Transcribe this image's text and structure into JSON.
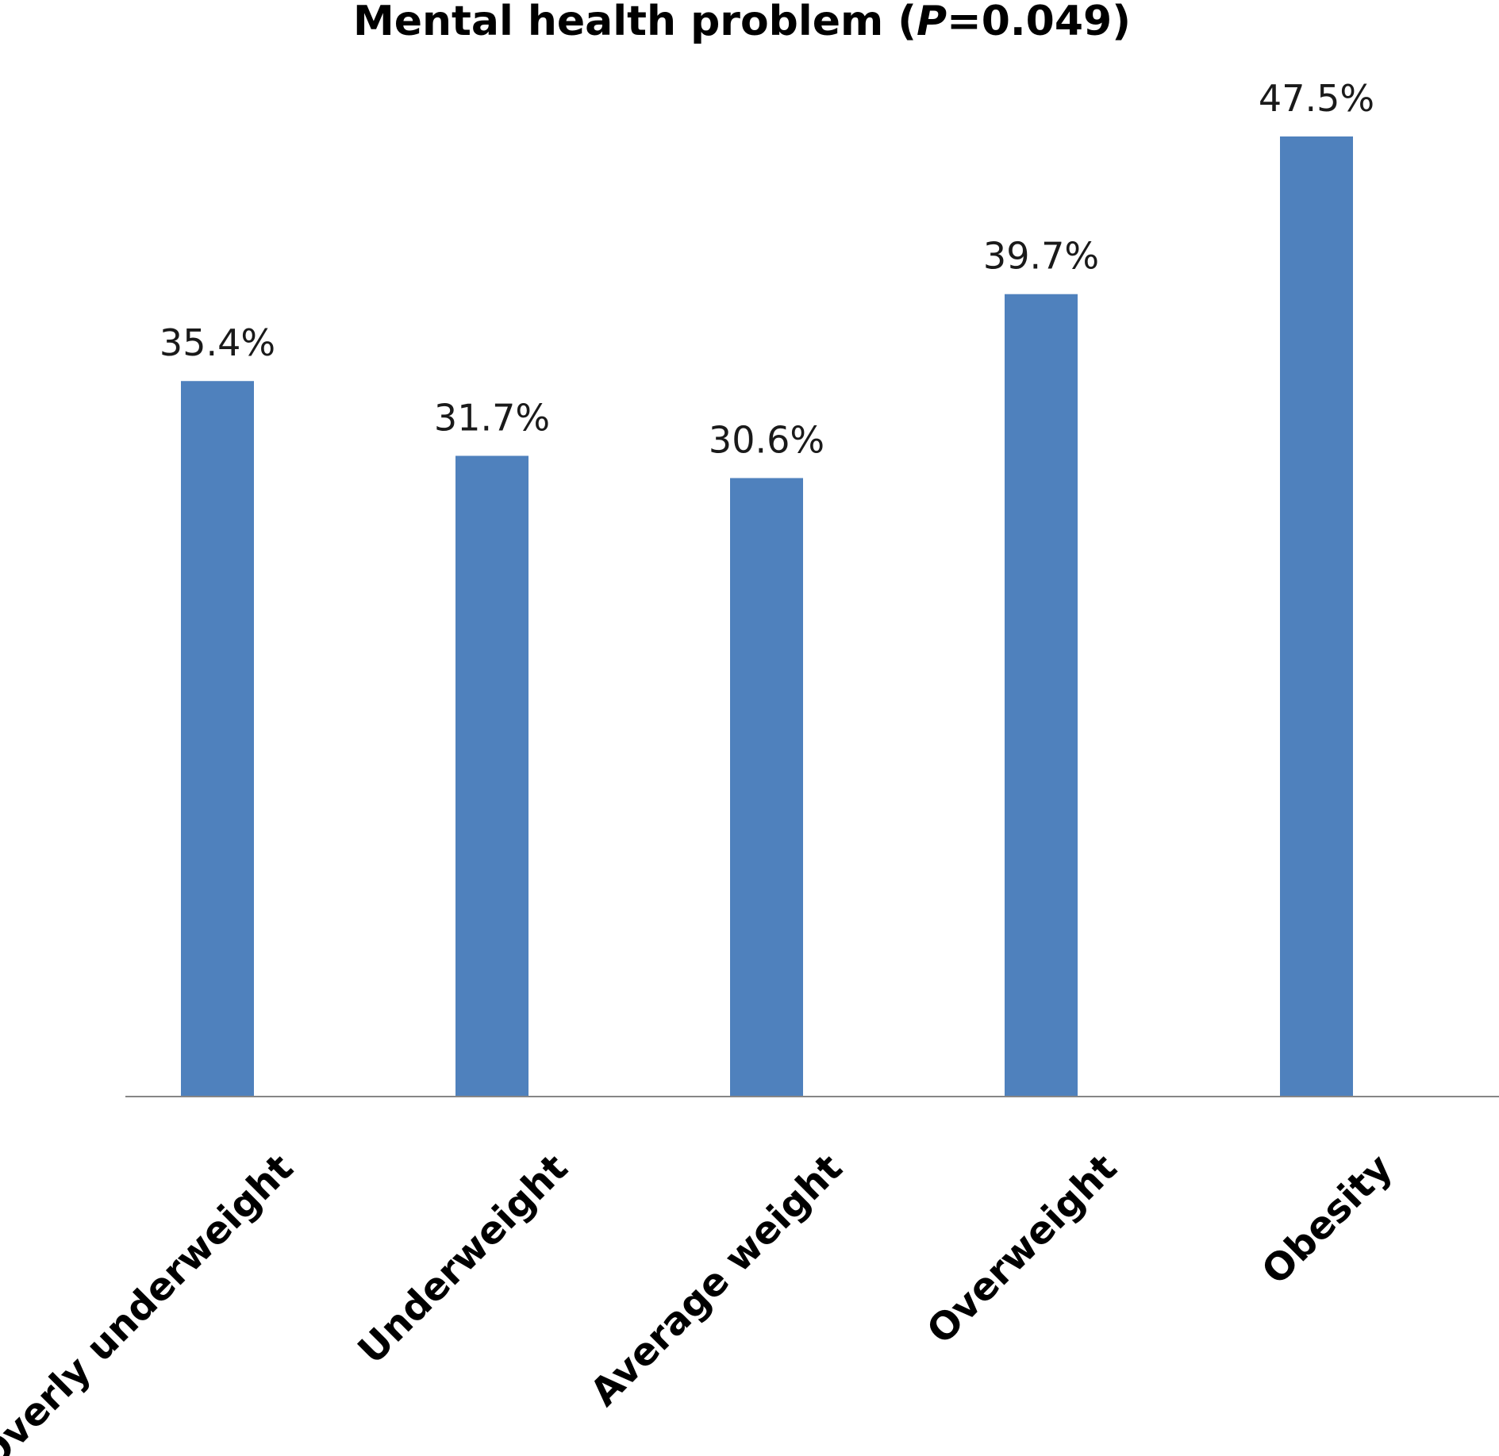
{
  "chart_data": {
    "type": "bar",
    "title": {
      "prefix": "Mental health problem (",
      "p_symbol": "P",
      "suffix": "=0.049)"
    },
    "categories": [
      "Overly underweight",
      "Underweight",
      "Average weight",
      "Overweight",
      "Obesity"
    ],
    "values": [
      35.4,
      31.7,
      30.6,
      39.7,
      47.5
    ],
    "value_labels": [
      "35.4%",
      "31.7%",
      "30.6%",
      "39.7%",
      "47.5%"
    ],
    "xlabel": "",
    "ylabel": "",
    "ylim": [
      0,
      47.5
    ],
    "grid": false,
    "bar_color": "#4f81bd",
    "axis_color": "#868686"
  }
}
